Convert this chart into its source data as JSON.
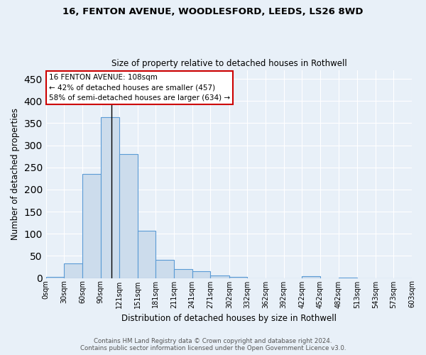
{
  "title1": "16, FENTON AVENUE, WOODLESFORD, LEEDS, LS26 8WD",
  "title2": "Size of property relative to detached houses in Rothwell",
  "xlabel": "Distribution of detached houses by size in Rothwell",
  "ylabel": "Number of detached properties",
  "bar_values": [
    2,
    33,
    235,
    363,
    280,
    106,
    41,
    20,
    15,
    6,
    3,
    0,
    0,
    0,
    4,
    0,
    1,
    0,
    0,
    0,
    0
  ],
  "bin_edges": [
    0,
    30,
    60,
    90,
    121,
    151,
    181,
    211,
    241,
    271,
    302,
    332,
    362,
    392,
    422,
    452,
    482,
    513,
    543,
    573,
    603
  ],
  "tick_labels": [
    "0sqm",
    "30sqm",
    "60sqm",
    "90sqm",
    "121sqm",
    "151sqm",
    "181sqm",
    "211sqm",
    "241sqm",
    "271sqm",
    "302sqm",
    "332sqm",
    "362sqm",
    "392sqm",
    "422sqm",
    "452sqm",
    "482sqm",
    "513sqm",
    "543sqm",
    "573sqm",
    "603sqm"
  ],
  "bar_color": "#ccdcec",
  "bar_edge_color": "#5b9bd5",
  "background_color": "#e8f0f8",
  "fig_background_color": "#e8f0f8",
  "grid_color": "#ffffff",
  "property_size": 108,
  "annotation_text_line1": "16 FENTON AVENUE: 108sqm",
  "annotation_text_line2": "← 42% of detached houses are smaller (457)",
  "annotation_text_line3": "58% of semi-detached houses are larger (634) →",
  "annotation_box_color": "#ffffff",
  "annotation_box_edge": "#cc0000",
  "yticks": [
    0,
    50,
    100,
    150,
    200,
    250,
    300,
    350,
    400,
    450
  ],
  "ylim": [
    0,
    470
  ],
  "xlim": [
    0,
    603
  ],
  "footer": "Contains HM Land Registry data © Crown copyright and database right 2024.\nContains public sector information licensed under the Open Government Licence v3.0."
}
